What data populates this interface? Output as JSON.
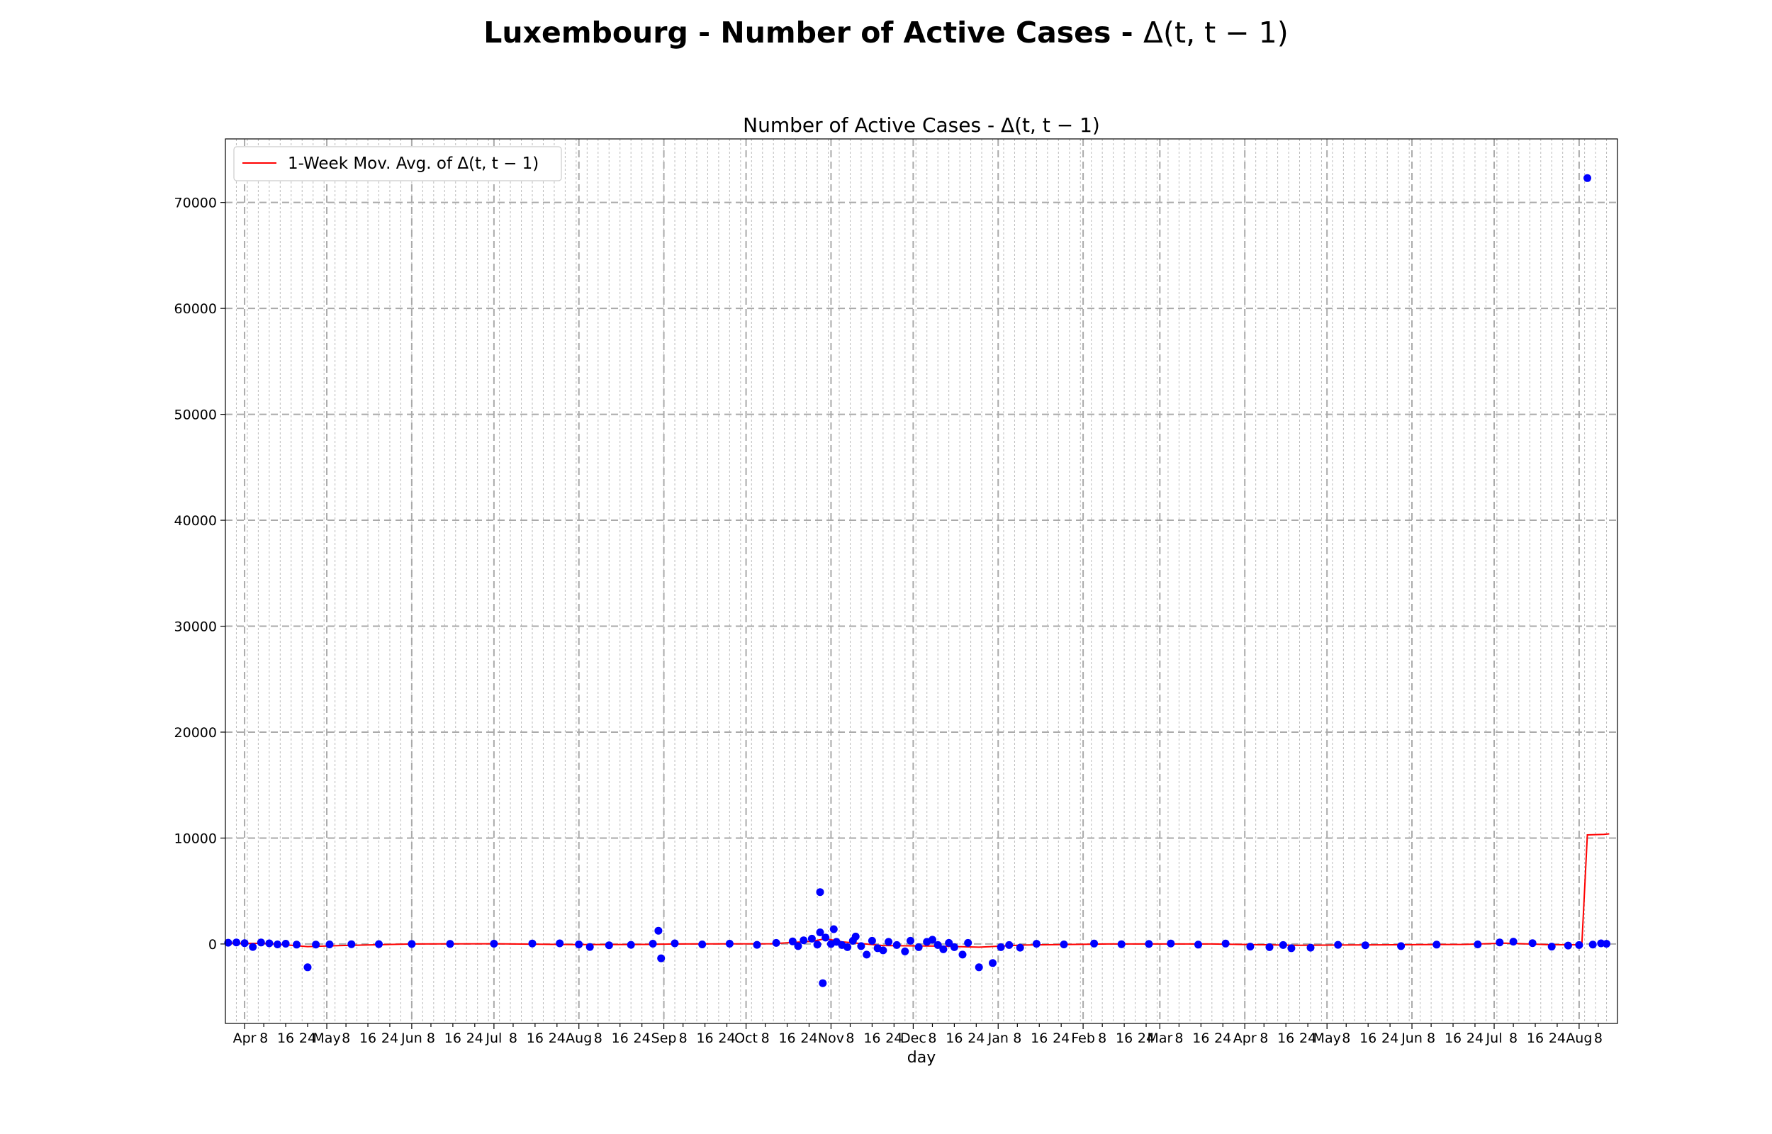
{
  "figure": {
    "suptitle": "Luxembourg - Number of Active Cases - ",
    "suptitle_math": "Δ(t, t − 1)"
  },
  "chart_data": {
    "type": "scatter",
    "title": "Number of Active Cases - Δ(t, t − 1)",
    "xlabel": "day",
    "ylabel": "",
    "legend": {
      "placement": "top-left",
      "entries": [
        "1-Week Mov. Avg. of Δ(t, t − 1)"
      ]
    },
    "grid": true,
    "xlim": [
      "2020-03-25",
      "2021-08-15"
    ],
    "ylim": [
      -7500,
      76000
    ],
    "yticks": [
      0,
      10000,
      20000,
      30000,
      40000,
      50000,
      60000,
      70000
    ],
    "xticks": [
      {
        "date": "2020-04-01",
        "label": "Apr",
        "major": true
      },
      {
        "date": "2020-04-08",
        "label": "8",
        "major": false
      },
      {
        "date": "2020-04-16",
        "label": "16",
        "major": false
      },
      {
        "date": "2020-04-24",
        "label": "24",
        "major": false
      },
      {
        "date": "2020-05-01",
        "label": "May",
        "major": true
      },
      {
        "date": "2020-05-08",
        "label": "8",
        "major": false
      },
      {
        "date": "2020-05-16",
        "label": "16",
        "major": false
      },
      {
        "date": "2020-05-24",
        "label": "24",
        "major": false
      },
      {
        "date": "2020-06-01",
        "label": "Jun",
        "major": true
      },
      {
        "date": "2020-06-08",
        "label": "8",
        "major": false
      },
      {
        "date": "2020-06-16",
        "label": "16",
        "major": false
      },
      {
        "date": "2020-06-24",
        "label": "24",
        "major": false
      },
      {
        "date": "2020-07-01",
        "label": "Jul",
        "major": true
      },
      {
        "date": "2020-07-08",
        "label": "8",
        "major": false
      },
      {
        "date": "2020-07-16",
        "label": "16",
        "major": false
      },
      {
        "date": "2020-07-24",
        "label": "24",
        "major": false
      },
      {
        "date": "2020-08-01",
        "label": "Aug",
        "major": true
      },
      {
        "date": "2020-08-08",
        "label": "8",
        "major": false
      },
      {
        "date": "2020-08-16",
        "label": "16",
        "major": false
      },
      {
        "date": "2020-08-24",
        "label": "24",
        "major": false
      },
      {
        "date": "2020-09-01",
        "label": "Sep",
        "major": true
      },
      {
        "date": "2020-09-08",
        "label": "8",
        "major": false
      },
      {
        "date": "2020-09-16",
        "label": "16",
        "major": false
      },
      {
        "date": "2020-09-24",
        "label": "24",
        "major": false
      },
      {
        "date": "2020-10-01",
        "label": "Oct",
        "major": true
      },
      {
        "date": "2020-10-08",
        "label": "8",
        "major": false
      },
      {
        "date": "2020-10-16",
        "label": "16",
        "major": false
      },
      {
        "date": "2020-10-24",
        "label": "24",
        "major": false
      },
      {
        "date": "2020-11-01",
        "label": "Nov",
        "major": true
      },
      {
        "date": "2020-11-08",
        "label": "8",
        "major": false
      },
      {
        "date": "2020-11-16",
        "label": "16",
        "major": false
      },
      {
        "date": "2020-11-24",
        "label": "24",
        "major": false
      },
      {
        "date": "2020-12-01",
        "label": "Dec",
        "major": true
      },
      {
        "date": "2020-12-08",
        "label": "8",
        "major": false
      },
      {
        "date": "2020-12-16",
        "label": "16",
        "major": false
      },
      {
        "date": "2020-12-24",
        "label": "24",
        "major": false
      },
      {
        "date": "2021-01-01",
        "label": "Jan",
        "major": true
      },
      {
        "date": "2021-01-08",
        "label": "8",
        "major": false
      },
      {
        "date": "2021-01-16",
        "label": "16",
        "major": false
      },
      {
        "date": "2021-01-24",
        "label": "24",
        "major": false
      },
      {
        "date": "2021-02-01",
        "label": "Feb",
        "major": true
      },
      {
        "date": "2021-02-08",
        "label": "8",
        "major": false
      },
      {
        "date": "2021-02-16",
        "label": "16",
        "major": false
      },
      {
        "date": "2021-02-24",
        "label": "24",
        "major": false
      },
      {
        "date": "2021-03-01",
        "label": "Mar",
        "major": true
      },
      {
        "date": "2021-03-08",
        "label": "8",
        "major": false
      },
      {
        "date": "2021-03-16",
        "label": "16",
        "major": false
      },
      {
        "date": "2021-03-24",
        "label": "24",
        "major": false
      },
      {
        "date": "2021-04-01",
        "label": "Apr",
        "major": true
      },
      {
        "date": "2021-04-08",
        "label": "8",
        "major": false
      },
      {
        "date": "2021-04-16",
        "label": "16",
        "major": false
      },
      {
        "date": "2021-04-24",
        "label": "24",
        "major": false
      },
      {
        "date": "2021-05-01",
        "label": "May",
        "major": true
      },
      {
        "date": "2021-05-08",
        "label": "8",
        "major": false
      },
      {
        "date": "2021-05-16",
        "label": "16",
        "major": false
      },
      {
        "date": "2021-05-24",
        "label": "24",
        "major": false
      },
      {
        "date": "2021-06-01",
        "label": "Jun",
        "major": true
      },
      {
        "date": "2021-06-08",
        "label": "8",
        "major": false
      },
      {
        "date": "2021-06-16",
        "label": "16",
        "major": false
      },
      {
        "date": "2021-06-24",
        "label": "24",
        "major": false
      },
      {
        "date": "2021-07-01",
        "label": "Jul",
        "major": true
      },
      {
        "date": "2021-07-08",
        "label": "8",
        "major": false
      },
      {
        "date": "2021-07-16",
        "label": "16",
        "major": false
      },
      {
        "date": "2021-07-24",
        "label": "24",
        "major": false
      },
      {
        "date": "2021-08-01",
        "label": "Aug",
        "major": true
      },
      {
        "date": "2021-08-08",
        "label": "8",
        "major": false
      }
    ],
    "series": [
      {
        "name": "Δ(t, t − 1)",
        "kind": "scatter",
        "color": "#0000ff",
        "points": [
          [
            "2020-03-26",
            120
          ],
          [
            "2020-03-29",
            150
          ],
          [
            "2020-04-01",
            80
          ],
          [
            "2020-04-04",
            -280
          ],
          [
            "2020-04-07",
            140
          ],
          [
            "2020-04-10",
            60
          ],
          [
            "2020-04-13",
            -40
          ],
          [
            "2020-04-16",
            30
          ],
          [
            "2020-04-20",
            -60
          ],
          [
            "2020-04-24",
            -2200
          ],
          [
            "2020-04-27",
            -50
          ],
          [
            "2020-05-02",
            -40
          ],
          [
            "2020-05-10",
            -20
          ],
          [
            "2020-05-20",
            -10
          ],
          [
            "2020-06-01",
            0
          ],
          [
            "2020-06-15",
            10
          ],
          [
            "2020-07-01",
            30
          ],
          [
            "2020-07-15",
            50
          ],
          [
            "2020-07-25",
            60
          ],
          [
            "2020-08-01",
            -40
          ],
          [
            "2020-08-05",
            -280
          ],
          [
            "2020-08-12",
            -120
          ],
          [
            "2020-08-20",
            -80
          ],
          [
            "2020-08-28",
            30
          ],
          [
            "2020-08-30",
            1250
          ],
          [
            "2020-08-31",
            -1350
          ],
          [
            "2020-09-05",
            60
          ],
          [
            "2020-09-15",
            -40
          ],
          [
            "2020-09-25",
            30
          ],
          [
            "2020-10-05",
            -80
          ],
          [
            "2020-10-12",
            100
          ],
          [
            "2020-10-18",
            250
          ],
          [
            "2020-10-20",
            -200
          ],
          [
            "2020-10-22",
            350
          ],
          [
            "2020-10-25",
            500
          ],
          [
            "2020-10-27",
            -50
          ],
          [
            "2020-10-28",
            1100
          ],
          [
            "2020-10-28",
            4900
          ],
          [
            "2020-10-29",
            -3700
          ],
          [
            "2020-10-30",
            600
          ],
          [
            "2020-11-01",
            0
          ],
          [
            "2020-11-02",
            1400
          ],
          [
            "2020-11-03",
            200
          ],
          [
            "2020-11-05",
            -100
          ],
          [
            "2020-11-07",
            -300
          ],
          [
            "2020-11-09",
            300
          ],
          [
            "2020-11-10",
            700
          ],
          [
            "2020-11-12",
            -200
          ],
          [
            "2020-11-14",
            -1000
          ],
          [
            "2020-11-16",
            300
          ],
          [
            "2020-11-18",
            -400
          ],
          [
            "2020-11-20",
            -600
          ],
          [
            "2020-11-22",
            200
          ],
          [
            "2020-11-25",
            -100
          ],
          [
            "2020-11-28",
            -700
          ],
          [
            "2020-11-30",
            300
          ],
          [
            "2020-12-03",
            -300
          ],
          [
            "2020-12-06",
            200
          ],
          [
            "2020-12-08",
            400
          ],
          [
            "2020-12-10",
            -100
          ],
          [
            "2020-12-12",
            -500
          ],
          [
            "2020-12-14",
            100
          ],
          [
            "2020-12-16",
            -300
          ],
          [
            "2020-12-19",
            -1000
          ],
          [
            "2020-12-21",
            100
          ],
          [
            "2020-12-25",
            -2200
          ],
          [
            "2020-12-30",
            -1800
          ],
          [
            "2021-01-02",
            -300
          ],
          [
            "2021-01-05",
            -100
          ],
          [
            "2021-01-09",
            -350
          ],
          [
            "2021-01-15",
            20
          ],
          [
            "2021-01-25",
            -40
          ],
          [
            "2021-02-05",
            40
          ],
          [
            "2021-02-15",
            -20
          ],
          [
            "2021-02-25",
            0
          ],
          [
            "2021-03-05",
            50
          ],
          [
            "2021-03-15",
            -60
          ],
          [
            "2021-03-25",
            40
          ],
          [
            "2021-04-03",
            -250
          ],
          [
            "2021-04-10",
            -300
          ],
          [
            "2021-04-15",
            -100
          ],
          [
            "2021-04-18",
            -400
          ],
          [
            "2021-04-25",
            -350
          ],
          [
            "2021-05-05",
            -80
          ],
          [
            "2021-05-15",
            -120
          ],
          [
            "2021-05-28",
            -200
          ],
          [
            "2021-06-10",
            -60
          ],
          [
            "2021-06-25",
            -40
          ],
          [
            "2021-07-03",
            150
          ],
          [
            "2021-07-08",
            220
          ],
          [
            "2021-07-15",
            80
          ],
          [
            "2021-07-22",
            -250
          ],
          [
            "2021-07-28",
            -150
          ],
          [
            "2021-08-01",
            -100
          ],
          [
            "2021-08-04",
            72300
          ],
          [
            "2021-08-06",
            -50
          ],
          [
            "2021-08-09",
            60
          ],
          [
            "2021-08-11",
            20
          ]
        ]
      },
      {
        "name": "1-Week Mov. Avg. of Δ(t, t − 1)",
        "kind": "line",
        "color": "#ff0000",
        "points": [
          [
            "2020-03-26",
            80
          ],
          [
            "2020-04-10",
            40
          ],
          [
            "2020-04-24",
            -250
          ],
          [
            "2020-05-06",
            -150
          ],
          [
            "2020-06-01",
            0
          ],
          [
            "2020-07-01",
            20
          ],
          [
            "2020-08-01",
            -60
          ],
          [
            "2020-08-25",
            -40
          ],
          [
            "2020-09-05",
            0
          ],
          [
            "2020-10-10",
            20
          ],
          [
            "2020-10-25",
            250
          ],
          [
            "2020-10-30",
            500
          ],
          [
            "2020-11-05",
            200
          ],
          [
            "2020-11-20",
            -150
          ],
          [
            "2020-12-10",
            -200
          ],
          [
            "2020-12-25",
            -300
          ],
          [
            "2021-01-10",
            -100
          ],
          [
            "2021-02-10",
            0
          ],
          [
            "2021-03-20",
            0
          ],
          [
            "2021-04-20",
            -120
          ],
          [
            "2021-05-20",
            -80
          ],
          [
            "2021-06-20",
            -40
          ],
          [
            "2021-07-05",
            80
          ],
          [
            "2021-07-20",
            -50
          ],
          [
            "2021-08-02",
            -80
          ],
          [
            "2021-08-04",
            10300
          ],
          [
            "2021-08-10",
            10350
          ],
          [
            "2021-08-12",
            10400
          ]
        ]
      }
    ]
  }
}
